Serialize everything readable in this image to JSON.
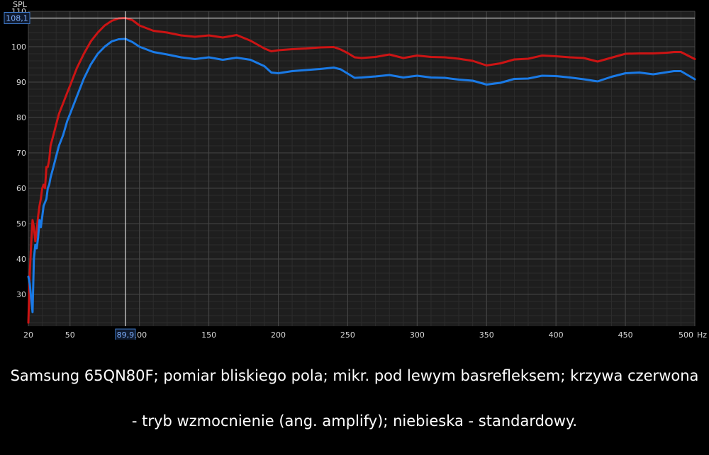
{
  "chart_data": {
    "type": "line",
    "ylabel": "SPL",
    "x_unit": "Hz",
    "xlim": [
      20,
      500
    ],
    "ylim": [
      21,
      110
    ],
    "x_ticks": [
      20,
      50,
      100,
      150,
      200,
      250,
      300,
      350,
      400,
      450,
      500
    ],
    "x_tick_labels": [
      "20",
      "50",
      "100",
      "150",
      "200",
      "250",
      "300",
      "350",
      "400",
      "450",
      "500"
    ],
    "y_ticks": [
      30,
      40,
      50,
      60,
      70,
      80,
      90,
      100,
      110
    ],
    "y_tick_labels": [
      "30",
      "40",
      "50",
      "60",
      "70",
      "80",
      "90",
      "100",
      "110"
    ],
    "grid": true,
    "cursor": {
      "x": 89.9,
      "y": 108.1,
      "x_label": "89,9",
      "y_label": "108,1"
    },
    "series": [
      {
        "color": "#cc1414",
        "x": [
          20,
          21,
          22,
          23,
          24,
          25,
          26,
          27,
          28,
          29,
          30,
          31,
          32,
          33,
          34,
          35,
          36,
          38,
          40,
          42,
          45,
          48,
          50,
          55,
          60,
          65,
          70,
          75,
          80,
          85,
          90,
          95,
          100,
          110,
          120,
          130,
          140,
          150,
          160,
          170,
          180,
          190,
          195,
          200,
          210,
          220,
          230,
          240,
          245,
          250,
          255,
          260,
          270,
          280,
          290,
          300,
          310,
          320,
          330,
          340,
          350,
          360,
          370,
          380,
          390,
          400,
          410,
          420,
          430,
          440,
          450,
          460,
          470,
          480,
          485,
          490,
          500
        ],
        "y": [
          22,
          36,
          44,
          51,
          49,
          45,
          48,
          52,
          55,
          57,
          60,
          61,
          60,
          66,
          66,
          68,
          72,
          75,
          78,
          81,
          84,
          87,
          89,
          94,
          98,
          101.5,
          104,
          106,
          107.3,
          108,
          108.1,
          107.5,
          106,
          104.5,
          104,
          103.2,
          102.8,
          103.2,
          102.6,
          103.3,
          101.7,
          99.5,
          98.7,
          99,
          99.3,
          99.5,
          99.8,
          99.9,
          99.2,
          98.2,
          97,
          96.8,
          97.1,
          97.8,
          96.8,
          97.5,
          97.1,
          97,
          96.6,
          96,
          94.7,
          95.3,
          96.4,
          96.6,
          97.5,
          97.3,
          97,
          96.8,
          95.8,
          96.9,
          98,
          98.1,
          98.1,
          98.3,
          98.5,
          98.5,
          96.5
        ]
      },
      {
        "color": "#1a7ae6",
        "x": [
          20,
          21,
          22,
          23,
          24,
          25,
          26,
          27,
          28,
          29,
          30,
          31,
          32,
          33,
          34,
          35,
          36,
          38,
          40,
          42,
          45,
          48,
          50,
          55,
          60,
          65,
          70,
          75,
          80,
          85,
          90,
          95,
          100,
          110,
          120,
          130,
          140,
          150,
          160,
          170,
          180,
          190,
          195,
          200,
          210,
          220,
          230,
          240,
          245,
          250,
          255,
          260,
          270,
          280,
          290,
          300,
          310,
          320,
          330,
          340,
          350,
          360,
          370,
          380,
          390,
          400,
          410,
          420,
          430,
          440,
          450,
          460,
          470,
          480,
          485,
          490,
          500
        ],
        "y": [
          35,
          33,
          29,
          25,
          40,
          44,
          43,
          46,
          51,
          49,
          52,
          55,
          56,
          57,
          60,
          61,
          63,
          66,
          69,
          72,
          75,
          79,
          81,
          86,
          91,
          95,
          98,
          100,
          101.5,
          102.1,
          102.2,
          101.3,
          100,
          98.5,
          97.8,
          97,
          96.5,
          97,
          96.3,
          96.9,
          96.3,
          94.5,
          92.7,
          92.5,
          93.1,
          93.4,
          93.7,
          94.1,
          93.6,
          92.4,
          91.2,
          91.3,
          91.6,
          92,
          91.3,
          91.8,
          91.3,
          91.2,
          90.7,
          90.4,
          89.3,
          89.8,
          90.9,
          91,
          91.8,
          91.7,
          91.3,
          90.8,
          90.2,
          91.5,
          92.5,
          92.7,
          92.2,
          92.8,
          93.1,
          93.1,
          90.8
        ]
      }
    ]
  },
  "caption": {
    "line1": "Samsung 65QN80F; pomiar bliskiego pola; mikr. pod lewym basrefleksem; krzywa czerwona",
    "line2": "- tryb wzmocnienie (ang. amplify); niebieska - standardowy."
  }
}
